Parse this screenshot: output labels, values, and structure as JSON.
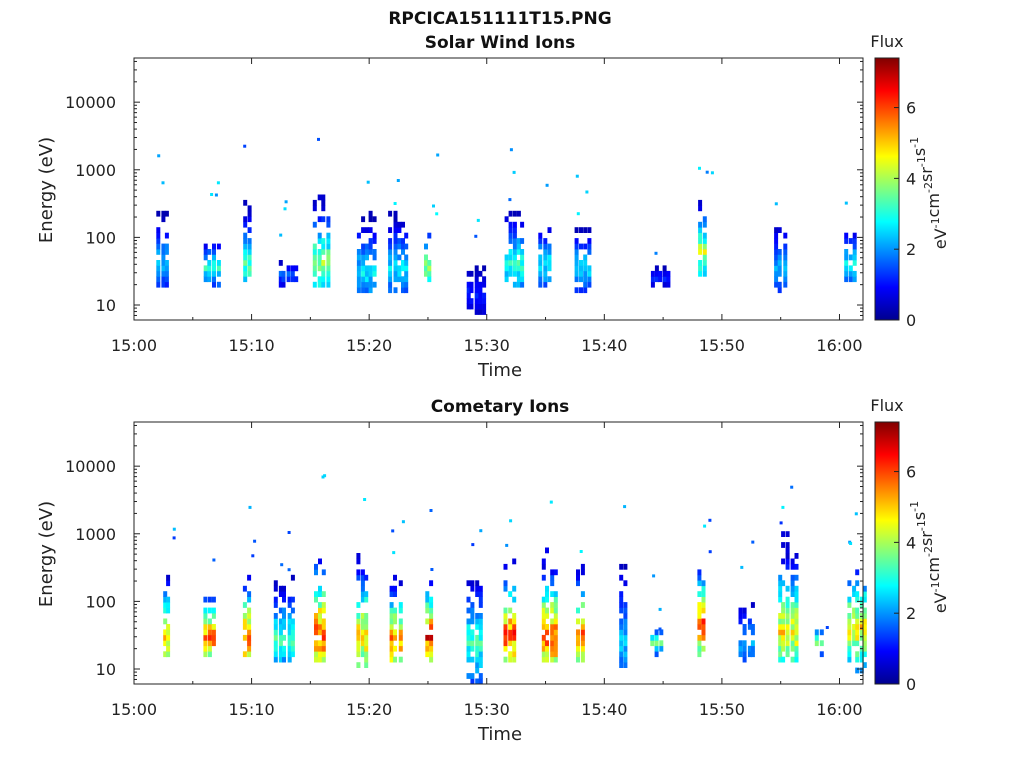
{
  "figure_title": "RPCICA151111T15.PNG",
  "chart_data": [
    {
      "type": "heatmap",
      "title": "Solar Wind Ions",
      "xlabel": "Time",
      "ylabel": "Energy (eV)",
      "x_ticks": [
        "15:00",
        "15:10",
        "15:20",
        "15:30",
        "15:40",
        "15:50",
        "16:00"
      ],
      "x_range": [
        "15:00",
        "16:02"
      ],
      "y_scale": "log",
      "y_ticks": [
        "10",
        "100",
        "1000",
        "10000"
      ],
      "y_range": [
        6,
        45000
      ],
      "colorbar": {
        "title": "Flux",
        "unit_label": "eV-1cm-2sr-1s-1",
        "ticks": [
          "0",
          "2",
          "4",
          "6"
        ],
        "range": [
          0,
          7.4
        ],
        "colormap": "jet"
      },
      "bursts": [
        {
          "time": "15:02.5",
          "energy_low": 18,
          "energy_high": 240,
          "peak_energy": 45,
          "peak_flux": 2.6
        },
        {
          "time": "15:06.5",
          "energy_low": 18,
          "energy_high": 90,
          "peak_energy": 35,
          "peak_flux": 3.4
        },
        {
          "time": "15:09.8",
          "energy_low": 22,
          "energy_high": 450,
          "peak_energy": 40,
          "peak_flux": 3.7
        },
        {
          "time": "15:12.8",
          "energy_low": 18,
          "energy_high": 45,
          "peak_energy": 28,
          "peak_flux": 1.8
        },
        {
          "time": "15:15.8",
          "energy_low": 18,
          "energy_high": 500,
          "peak_energy": 40,
          "peak_flux": 4.4
        },
        {
          "time": "15:19.5",
          "energy_low": 15,
          "energy_high": 300,
          "peak_energy": 30,
          "peak_flux": 2.9
        },
        {
          "time": "15:22.2",
          "energy_low": 15,
          "energy_high": 250,
          "peak_energy": 35,
          "peak_flux": 3.0
        },
        {
          "time": "15:25.2",
          "energy_low": 15,
          "energy_high": 230,
          "peak_energy": 35,
          "peak_flux": 4.2
        },
        {
          "time": "15:28.8",
          "energy_low": 7,
          "energy_high": 40,
          "peak_energy": 15,
          "peak_flux": 1.3
        },
        {
          "time": "15:32",
          "energy_low": 18,
          "energy_high": 320,
          "peak_energy": 40,
          "peak_flux": 3.5
        },
        {
          "time": "15:35",
          "energy_low": 18,
          "energy_high": 180,
          "peak_energy": 40,
          "peak_flux": 3.1
        },
        {
          "time": "15:38",
          "energy_low": 15,
          "energy_high": 130,
          "peak_energy": 35,
          "peak_flux": 3.0
        },
        {
          "time": "15:44.5",
          "energy_low": 20,
          "energy_high": 40,
          "peak_energy": 25,
          "peak_flux": 1.4
        },
        {
          "time": "15:48.5",
          "energy_low": 22,
          "energy_high": 330,
          "peak_energy": 60,
          "peak_flux": 4.6
        },
        {
          "time": "15:55",
          "energy_low": 15,
          "energy_high": 200,
          "peak_energy": 35,
          "peak_flux": 2.5
        },
        {
          "time": "16:01",
          "energy_low": 18,
          "energy_high": 150,
          "peak_energy": 40,
          "peak_flux": 3.2
        }
      ]
    },
    {
      "type": "heatmap",
      "title": "Cometary Ions",
      "xlabel": "Time",
      "ylabel": "Energy (eV)",
      "x_ticks": [
        "15:00",
        "15:10",
        "15:20",
        "15:30",
        "15:40",
        "15:50",
        "16:00"
      ],
      "x_range": [
        "15:00",
        "16:02"
      ],
      "y_scale": "log",
      "y_ticks": [
        "10",
        "100",
        "1000",
        "10000"
      ],
      "y_range": [
        6,
        45000
      ],
      "colorbar": {
        "title": "Flux",
        "unit_label": "eV-1cm-2sr-1s-1",
        "ticks": [
          "0",
          "2",
          "4",
          "6"
        ],
        "range": [
          0,
          7.4
        ],
        "colormap": "jet"
      },
      "bursts": [
        {
          "time": "15:03",
          "energy_low": 15,
          "energy_high": 450,
          "peak_energy": 30,
          "peak_flux": 5.3
        },
        {
          "time": "15:06.5",
          "energy_low": 15,
          "energy_high": 200,
          "peak_energy": 30,
          "peak_flux": 6.4
        },
        {
          "time": "15:09.8",
          "energy_low": 15,
          "energy_high": 400,
          "peak_energy": 30,
          "peak_flux": 6.6
        },
        {
          "time": "15:12.5",
          "energy_low": 12,
          "energy_high": 250,
          "peak_energy": 28,
          "peak_flux": 3.6
        },
        {
          "time": "15:15.8",
          "energy_low": 12,
          "energy_high": 1100,
          "peak_energy": 32,
          "peak_flux": 6.5
        },
        {
          "time": "15:19.5",
          "energy_low": 10,
          "energy_high": 600,
          "peak_energy": 30,
          "peak_flux": 5.6
        },
        {
          "time": "15:22.3",
          "energy_low": 12,
          "energy_high": 350,
          "peak_energy": 25,
          "peak_flux": 6.2
        },
        {
          "time": "15:25.3",
          "energy_low": 12,
          "energy_high": 300,
          "peak_energy": 30,
          "peak_flux": 7.0
        },
        {
          "time": "15:28.8",
          "energy_low": 6,
          "energy_high": 220,
          "peak_energy": 25,
          "peak_flux": 3.6
        },
        {
          "time": "15:32",
          "energy_low": 12,
          "energy_high": 420,
          "peak_energy": 32,
          "peak_flux": 6.6
        },
        {
          "time": "15:35.2",
          "energy_low": 12,
          "energy_high": 600,
          "peak_energy": 30,
          "peak_flux": 6.7
        },
        {
          "time": "15:38.2",
          "energy_low": 12,
          "energy_high": 420,
          "peak_energy": 30,
          "peak_flux": 6.6
        },
        {
          "time": "15:41.8",
          "energy_low": 10,
          "energy_high": 1000,
          "peak_energy": 25,
          "peak_flux": 2.6
        },
        {
          "time": "15:44.5",
          "energy_low": 15,
          "energy_high": 40,
          "peak_energy": 25,
          "peak_flux": 3.8
        },
        {
          "time": "15:48.5",
          "energy_low": 15,
          "energy_high": 420,
          "peak_energy": 45,
          "peak_flux": 6.8
        },
        {
          "time": "15:52",
          "energy_low": 12,
          "energy_high": 120,
          "peak_energy": 25,
          "peak_flux": 2.5
        },
        {
          "time": "15:55.3",
          "energy_low": 12,
          "energy_high": 1000,
          "peak_energy": 35,
          "peak_flux": 5.2
        },
        {
          "time": "15:58.5",
          "energy_low": 15,
          "energy_high": 40,
          "peak_energy": 25,
          "peak_flux": 4.2
        },
        {
          "time": "16:01.2",
          "energy_low": 8,
          "energy_high": 320,
          "peak_energy": 40,
          "peak_flux": 5.4
        }
      ]
    }
  ]
}
